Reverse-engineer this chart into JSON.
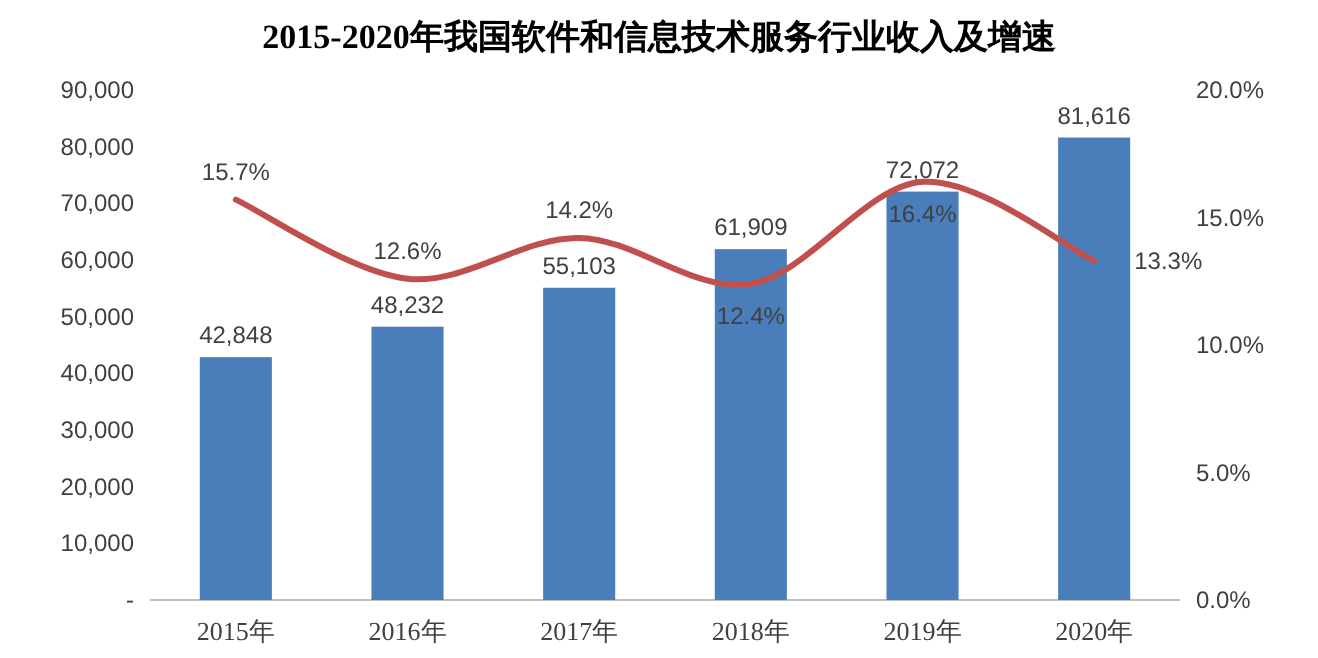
{
  "chart_data": {
    "type": "bar",
    "title": "2015-2020年我国软件和信息技术服务行业收入及增速",
    "categories": [
      "2015年",
      "2016年",
      "2017年",
      "2018年",
      "2019年",
      "2020年"
    ],
    "series": [
      {
        "color": "#4a7ebb",
        "values": [
          42848,
          48232,
          55103,
          61909,
          72072,
          81616
        ],
        "value_labels": [
          "42,848",
          "48,232",
          "55,103",
          "61,909",
          "72,072",
          "81,616"
        ]
      },
      {
        "type": "line",
        "axis": "y2",
        "color": "#c0504d",
        "values": [
          15.7,
          12.6,
          14.2,
          12.4,
          16.4,
          13.3
        ],
        "value_labels": [
          "15.7%",
          "12.6%",
          "14.2%",
          "12.4%",
          "16.4%",
          "13.3%"
        ]
      }
    ],
    "ylim": [
      0,
      90000
    ],
    "yticks": [
      {
        "value": 0,
        "label": "-"
      },
      {
        "value": 10000,
        "label": "10,000"
      },
      {
        "value": 20000,
        "label": "20,000"
      },
      {
        "value": 30000,
        "label": "30,000"
      },
      {
        "value": 40000,
        "label": "40,000"
      },
      {
        "value": 50000,
        "label": "50,000"
      },
      {
        "value": 60000,
        "label": "60,000"
      },
      {
        "value": 70000,
        "label": "70,000"
      },
      {
        "value": 80000,
        "label": "80,000"
      },
      {
        "value": 90000,
        "label": "90,000"
      }
    ],
    "y2lim": [
      0,
      20
    ],
    "y2ticks": [
      {
        "value": 0,
        "label": "0.0%"
      },
      {
        "value": 5,
        "label": "5.0%"
      },
      {
        "value": 10,
        "label": "10.0%"
      },
      {
        "value": 15,
        "label": "15.0%"
      },
      {
        "value": 20,
        "label": "20.0%"
      }
    ],
    "grid": false,
    "marker": "none",
    "line_style": "solid"
  }
}
